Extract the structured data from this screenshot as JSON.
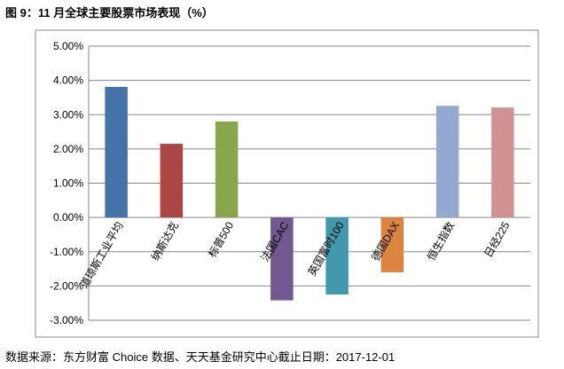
{
  "chart_data": {
    "type": "bar",
    "title": "图 9：11 月全球主要股票市场表现（%）",
    "source": "数据来源：东方财富 Choice 数据、天天基金研究中心截止日期：2017-12-01",
    "categories": [
      "道琼斯工业平均",
      "纳斯达克",
      "标普500",
      "法国CAC",
      "英国富时100",
      "德国DAX",
      "恒生指数",
      "日经225"
    ],
    "values": [
      3.81,
      2.15,
      2.8,
      -2.42,
      -2.25,
      -1.6,
      3.26,
      3.21
    ],
    "colors": [
      "#4572a7",
      "#aa4643",
      "#89a54e",
      "#71588f",
      "#4198af",
      "#db843d",
      "#93a9cf",
      "#d19392"
    ],
    "ylim": [
      -3,
      5
    ],
    "yticks": [
      {
        "value": -3,
        "label": "-3.00%"
      },
      {
        "value": -2,
        "label": "-2.00%"
      },
      {
        "value": -1,
        "label": "-1.00%"
      },
      {
        "value": 0,
        "label": "0.00%"
      },
      {
        "value": 1,
        "label": "1.00%"
      },
      {
        "value": 2,
        "label": "2.00%"
      },
      {
        "value": 3,
        "label": "3.00%"
      },
      {
        "value": 4,
        "label": "4.00%"
      },
      {
        "value": 5,
        "label": "5.00%"
      }
    ],
    "grid": true
  }
}
